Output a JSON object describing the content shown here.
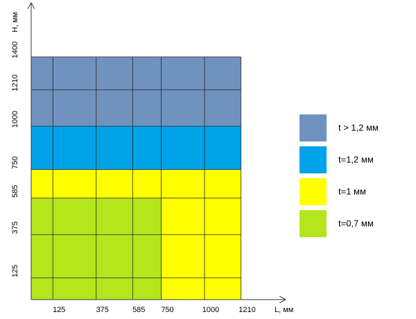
{
  "chart_data": {
    "type": "region-grid",
    "x_label": "L, мм",
    "y_label": "H, мм",
    "xlim": [
      0,
      1460
    ],
    "ylim": [
      0,
      1708
    ],
    "xticks": [
      125,
      375,
      585,
      750,
      1000,
      1210
    ],
    "yticks": [
      125,
      375,
      585,
      750,
      1000,
      1210,
      1400
    ],
    "grid": true,
    "legend": "right",
    "series": [
      {
        "name": "t > 1,2 мм",
        "color": "#7092be",
        "regions": [
          {
            "x": [
              0,
              1210
            ],
            "y": [
              1000,
              1400
            ]
          }
        ]
      },
      {
        "name": "t=1,2 мм",
        "color": "#00a2e8",
        "regions": [
          {
            "x": [
              0,
              1210
            ],
            "y": [
              750,
              1000
            ]
          }
        ]
      },
      {
        "name": "t=1 мм",
        "color": "#ffff00",
        "regions": [
          {
            "x": [
              0,
              1210
            ],
            "y": [
              585,
              750
            ]
          },
          {
            "x": [
              750,
              1210
            ],
            "y": [
              0,
              585
            ]
          }
        ]
      },
      {
        "name": "t=0,7 мм",
        "color": "#b5e61d",
        "regions": [
          {
            "x": [
              0,
              750
            ],
            "y": [
              0,
              585
            ]
          }
        ]
      }
    ]
  }
}
